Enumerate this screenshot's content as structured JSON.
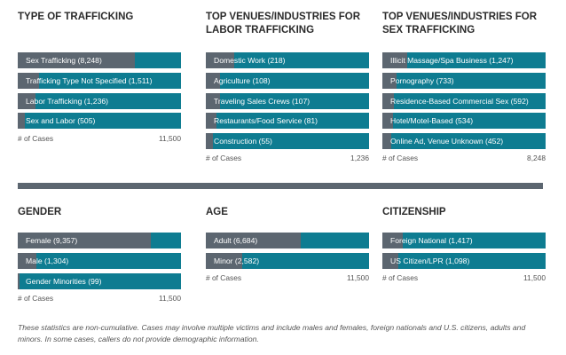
{
  "colors": {
    "fill": "#5c6670",
    "track": "#0e7c91",
    "divider": "#5c6670"
  },
  "chart_data": [
    {
      "type": "bar",
      "title": "TYPE OF TRAFFICKING",
      "categories": [
        "Sex Trafficking",
        "Trafficking Type Not Specified",
        "Labor Trafficking",
        "Sex and Labor"
      ],
      "values": [
        8248,
        1511,
        1236,
        505
      ],
      "labels": [
        "Sex Trafficking (8,248)",
        "Trafficking Type Not Specified (1,511)",
        "Labor Trafficking (1,236)",
        "Sex and Labor (505)"
      ],
      "xlabel": "# of Cases",
      "total_label": "11,500",
      "xlim": [
        0,
        11500
      ]
    },
    {
      "type": "bar",
      "title": "TOP VENUES/INDUSTRIES FOR LABOR TRAFFICKING",
      "categories": [
        "Domestic Work",
        "Agriculture",
        "Traveling Sales Crews",
        "Restaurants/Food Service",
        "Construction"
      ],
      "values": [
        218,
        108,
        107,
        81,
        55
      ],
      "labels": [
        "Domestic Work (218)",
        "Agriculture (108)",
        "Traveling Sales Crews (107)",
        "Restaurants/Food Service (81)",
        "Construction (55)"
      ],
      "xlabel": "# of Cases",
      "total_label": "1,236",
      "xlim": [
        0,
        1236
      ]
    },
    {
      "type": "bar",
      "title": "TOP VENUES/INDUSTRIES FOR SEX TRAFFICKING",
      "categories": [
        "Illicit Massage/Spa Business",
        "Pornography",
        "Residence-Based Commercial Sex",
        "Hotel/Motel-Based",
        "Online Ad, Venue Unknown"
      ],
      "values": [
        1247,
        733,
        592,
        534,
        452
      ],
      "labels": [
        "Illicit Massage/Spa Business (1,247)",
        "Pornography (733)",
        "Residence-Based Commercial Sex (592)",
        "Hotel/Motel-Based (534)",
        "Online Ad, Venue Unknown (452)"
      ],
      "xlabel": "# of Cases",
      "total_label": "8,248",
      "xlim": [
        0,
        8248
      ]
    },
    {
      "type": "bar",
      "title": "GENDER",
      "categories": [
        "Female",
        "Male",
        "Gender Minorities"
      ],
      "values": [
        9357,
        1304,
        99
      ],
      "labels": [
        "Female (9,357)",
        "Male (1,304)",
        "Gender Minorities (99)"
      ],
      "xlabel": "# of Cases",
      "total_label": "11,500",
      "xlim": [
        0,
        11500
      ]
    },
    {
      "type": "bar",
      "title": "AGE",
      "categories": [
        "Adult",
        "Minor"
      ],
      "values": [
        6684,
        2582
      ],
      "labels": [
        "Adult (6,684)",
        "Minor (2,582)"
      ],
      "xlabel": "# of Cases",
      "total_label": "11,500",
      "xlim": [
        0,
        11500
      ]
    },
    {
      "type": "bar",
      "title": "CITIZENSHIP",
      "categories": [
        "Foreign National",
        "US Citizen/LPR"
      ],
      "values": [
        1417,
        1098
      ],
      "labels": [
        "Foreign National (1,417)",
        "US Citizen/LPR (1,098)"
      ],
      "xlabel": "# of Cases",
      "total_label": "11,500",
      "xlim": [
        0,
        11500
      ]
    }
  ],
  "note": "These statistics are non-cumulative. Cases may involve multiple victims and include males and females, foreign nationals and U.S. citizens, adults and minors. In some cases, callers do not provide demographic information."
}
